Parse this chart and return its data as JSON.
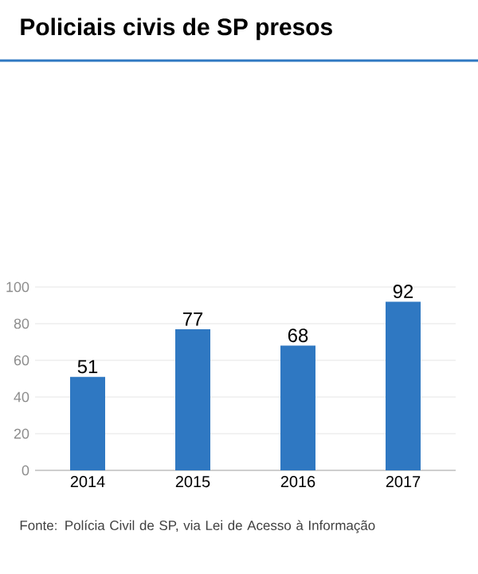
{
  "chart_data": {
    "type": "bar",
    "title": "Policiais civis de SP presos",
    "categories": [
      "2014",
      "2015",
      "2016",
      "2017"
    ],
    "values": [
      51,
      77,
      68,
      92
    ],
    "color": "#2f78c2",
    "ylim": [
      0,
      100
    ],
    "yticks": [
      0,
      20,
      40,
      60,
      80,
      100
    ],
    "grid": "y",
    "data_labels": true,
    "annotations": [
      "Fonte: Polícia Civil de SP, via Lei de Acesso à Informação"
    ]
  }
}
